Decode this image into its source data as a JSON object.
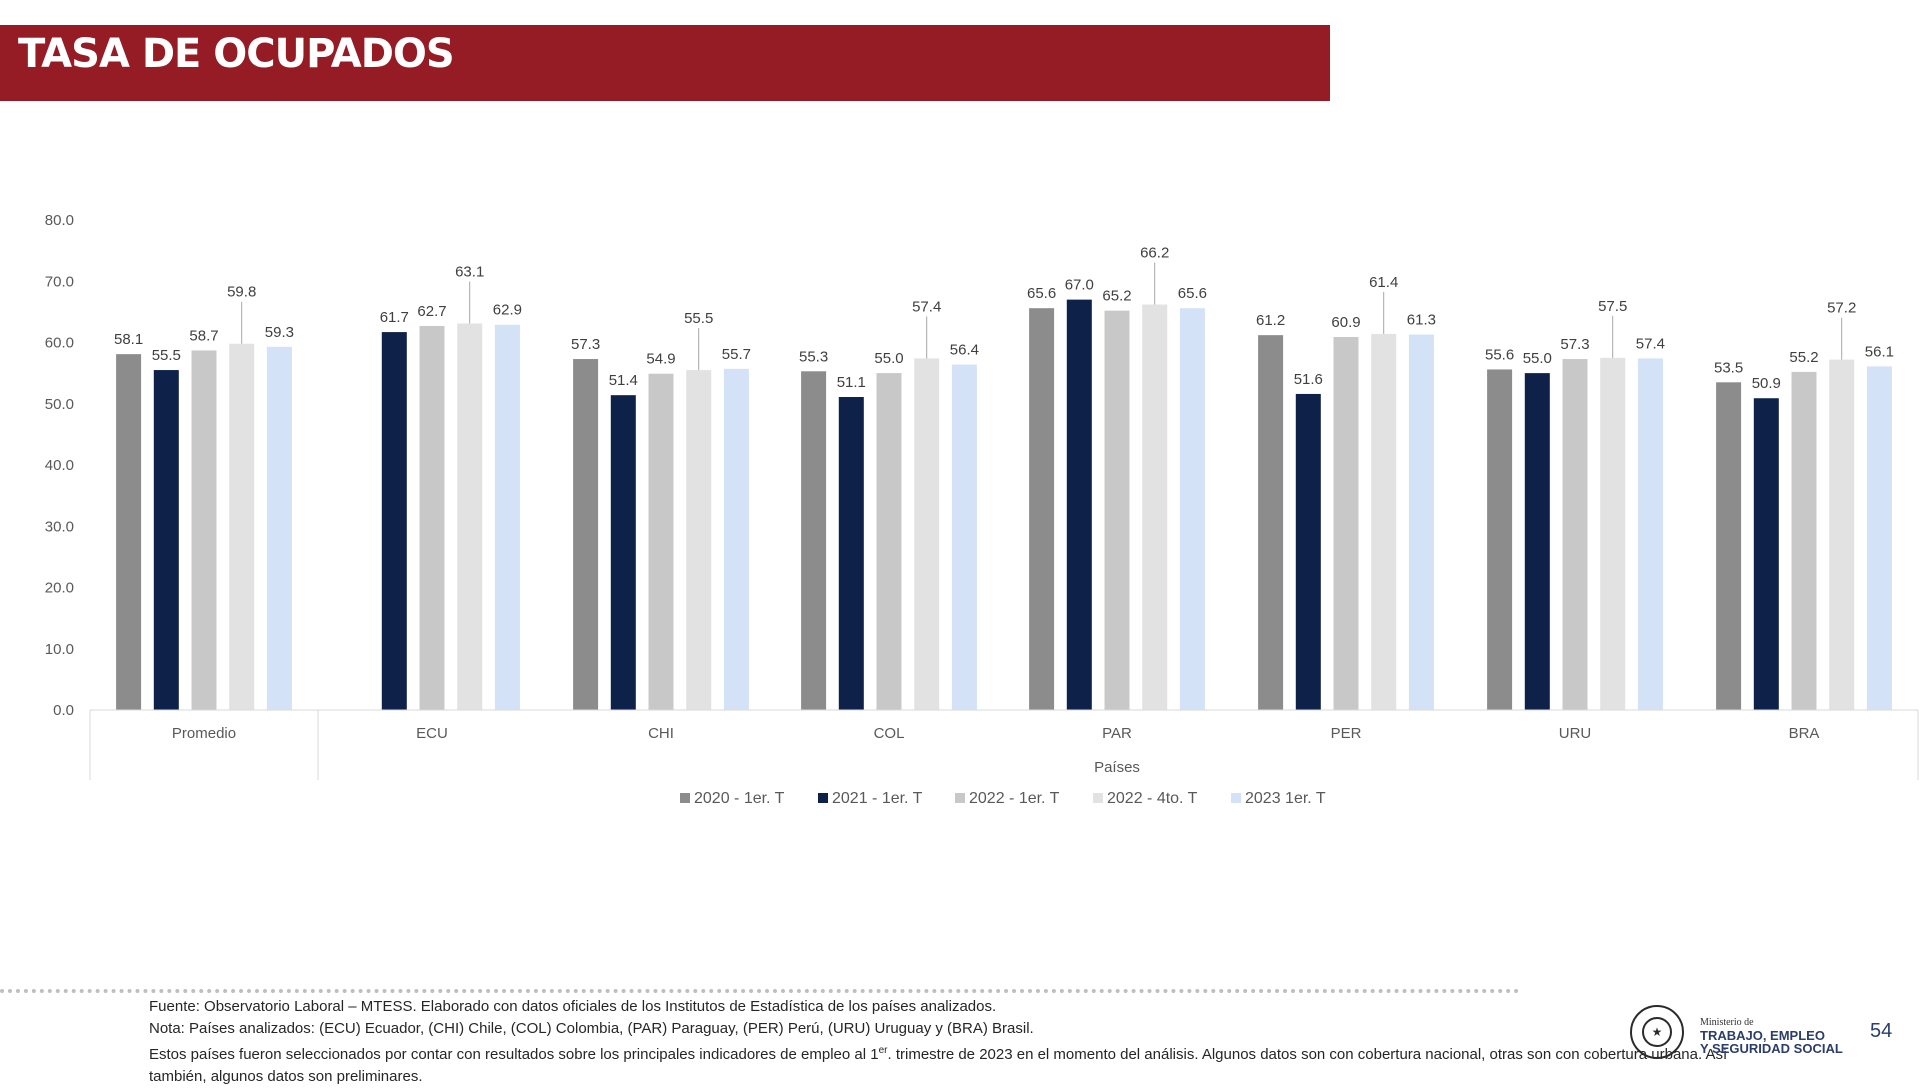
{
  "slide": {
    "title": "TASA DE OCUPADOS",
    "page_number": "54"
  },
  "chart_data": {
    "type": "bar",
    "categories": [
      "Promedio",
      "ECU",
      "CHI",
      "COL",
      "PAR",
      "PER",
      "URU",
      "BRA"
    ],
    "xlabel": "Países",
    "ylabel": "",
    "ylim": [
      0,
      80
    ],
    "yticks": [
      "0.0",
      "10.0",
      "20.0",
      "30.0",
      "40.0",
      "50.0",
      "60.0",
      "70.0",
      "80.0"
    ],
    "grid": false,
    "legend_position": "bottom",
    "series": [
      {
        "name": "2020 - 1er. T",
        "color": "#8c8c8c",
        "values": [
          58.1,
          null,
          57.3,
          55.3,
          65.6,
          61.2,
          55.6,
          53.5
        ]
      },
      {
        "name": "2021 - 1er. T",
        "color": "#0d2149",
        "values": [
          55.5,
          61.7,
          51.4,
          51.1,
          67.0,
          51.6,
          55.0,
          50.9
        ]
      },
      {
        "name": "2022 - 1er. T",
        "color": "#c8c8c8",
        "values": [
          58.7,
          62.7,
          54.9,
          55.0,
          65.2,
          60.9,
          57.3,
          55.2
        ]
      },
      {
        "name": "2022 - 4to. T",
        "color": "#e2e2e2",
        "values": [
          59.8,
          63.1,
          55.5,
          57.4,
          66.2,
          61.4,
          57.5,
          57.2
        ]
      },
      {
        "name": "2023 1er. T",
        "color": "#d3e2f7",
        "values": [
          59.3,
          62.9,
          55.7,
          56.4,
          65.6,
          61.3,
          57.4,
          56.1
        ]
      }
    ]
  },
  "footer": {
    "source": "Fuente: Observatorio Laboral – MTESS. Elaborado con datos oficiales de los Institutos de Estadística de los países analizados.",
    "note": "Nota: Países analizados: (ECU) Ecuador, (CHI) Chile, (COL) Colombia, (PAR) Paraguay, (PER)  Perú, (URU) Uruguay y (BRA) Brasil.",
    "selection_pre": "Estos países fueron seleccionados por contar con resultados sobre los principales indicadores de empleo al 1",
    "selection_sup": "er",
    "selection_post": ". trimestre de 2023 en el momento del análisis. Algunos datos son con cobertura nacional, otras son con cobertura urbana. Así también, algunos datos son preliminares."
  },
  "logo": {
    "ministry_small": "Ministerio de",
    "ministry_line1": "TRABAJO, EMPLEO",
    "ministry_line2": "Y SEGURIDAD SOCIAL",
    "seal_icon": "seal-icon"
  }
}
